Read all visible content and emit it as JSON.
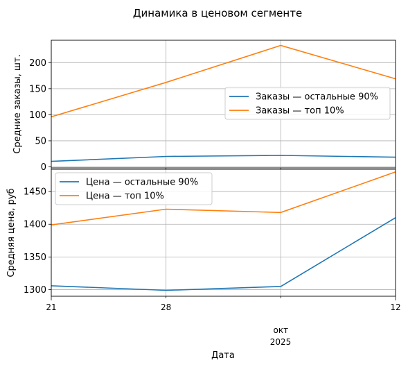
{
  "figure_title": "Динамика в ценовом сегменте",
  "shared_x": {
    "xlabel": "Дата",
    "tick_labels": [
      "21",
      "28",
      "окт",
      "12"
    ],
    "secondary_label": "2025"
  },
  "chart_data": [
    {
      "type": "line",
      "x": [
        "2025-09-21",
        "2025-09-28",
        "2025-10-05",
        "2025-10-12"
      ],
      "ylabel": "Средние заказы, шт.",
      "ylim": [
        -2,
        243
      ],
      "yticks": [
        0,
        50,
        100,
        150,
        200
      ],
      "grid": true,
      "legend": "center-right",
      "series": [
        {
          "name": "Заказы — остальные 90%",
          "color": "#1f77b4",
          "values": [
            10.5,
            20,
            22,
            18.5
          ]
        },
        {
          "name": "Заказы — топ 10%",
          "color": "#ff7f0e",
          "values": [
            96,
            162,
            233,
            169
          ]
        }
      ]
    },
    {
      "type": "line",
      "x": [
        "2025-09-21",
        "2025-09-28",
        "2025-10-05",
        "2025-10-12"
      ],
      "ylabel": "Средняя цена, руб",
      "ylim": [
        1290,
        1484
      ],
      "yticks": [
        1300,
        1350,
        1400,
        1450
      ],
      "grid": true,
      "legend": "upper-left",
      "series": [
        {
          "name": "Цена — остальные 90%",
          "color": "#1f77b4",
          "values": [
            1306,
            1299,
            1305,
            1410
          ]
        },
        {
          "name": "Цена — топ 10%",
          "color": "#ff7f0e",
          "values": [
            1399,
            1423,
            1418,
            1480
          ]
        }
      ]
    }
  ]
}
